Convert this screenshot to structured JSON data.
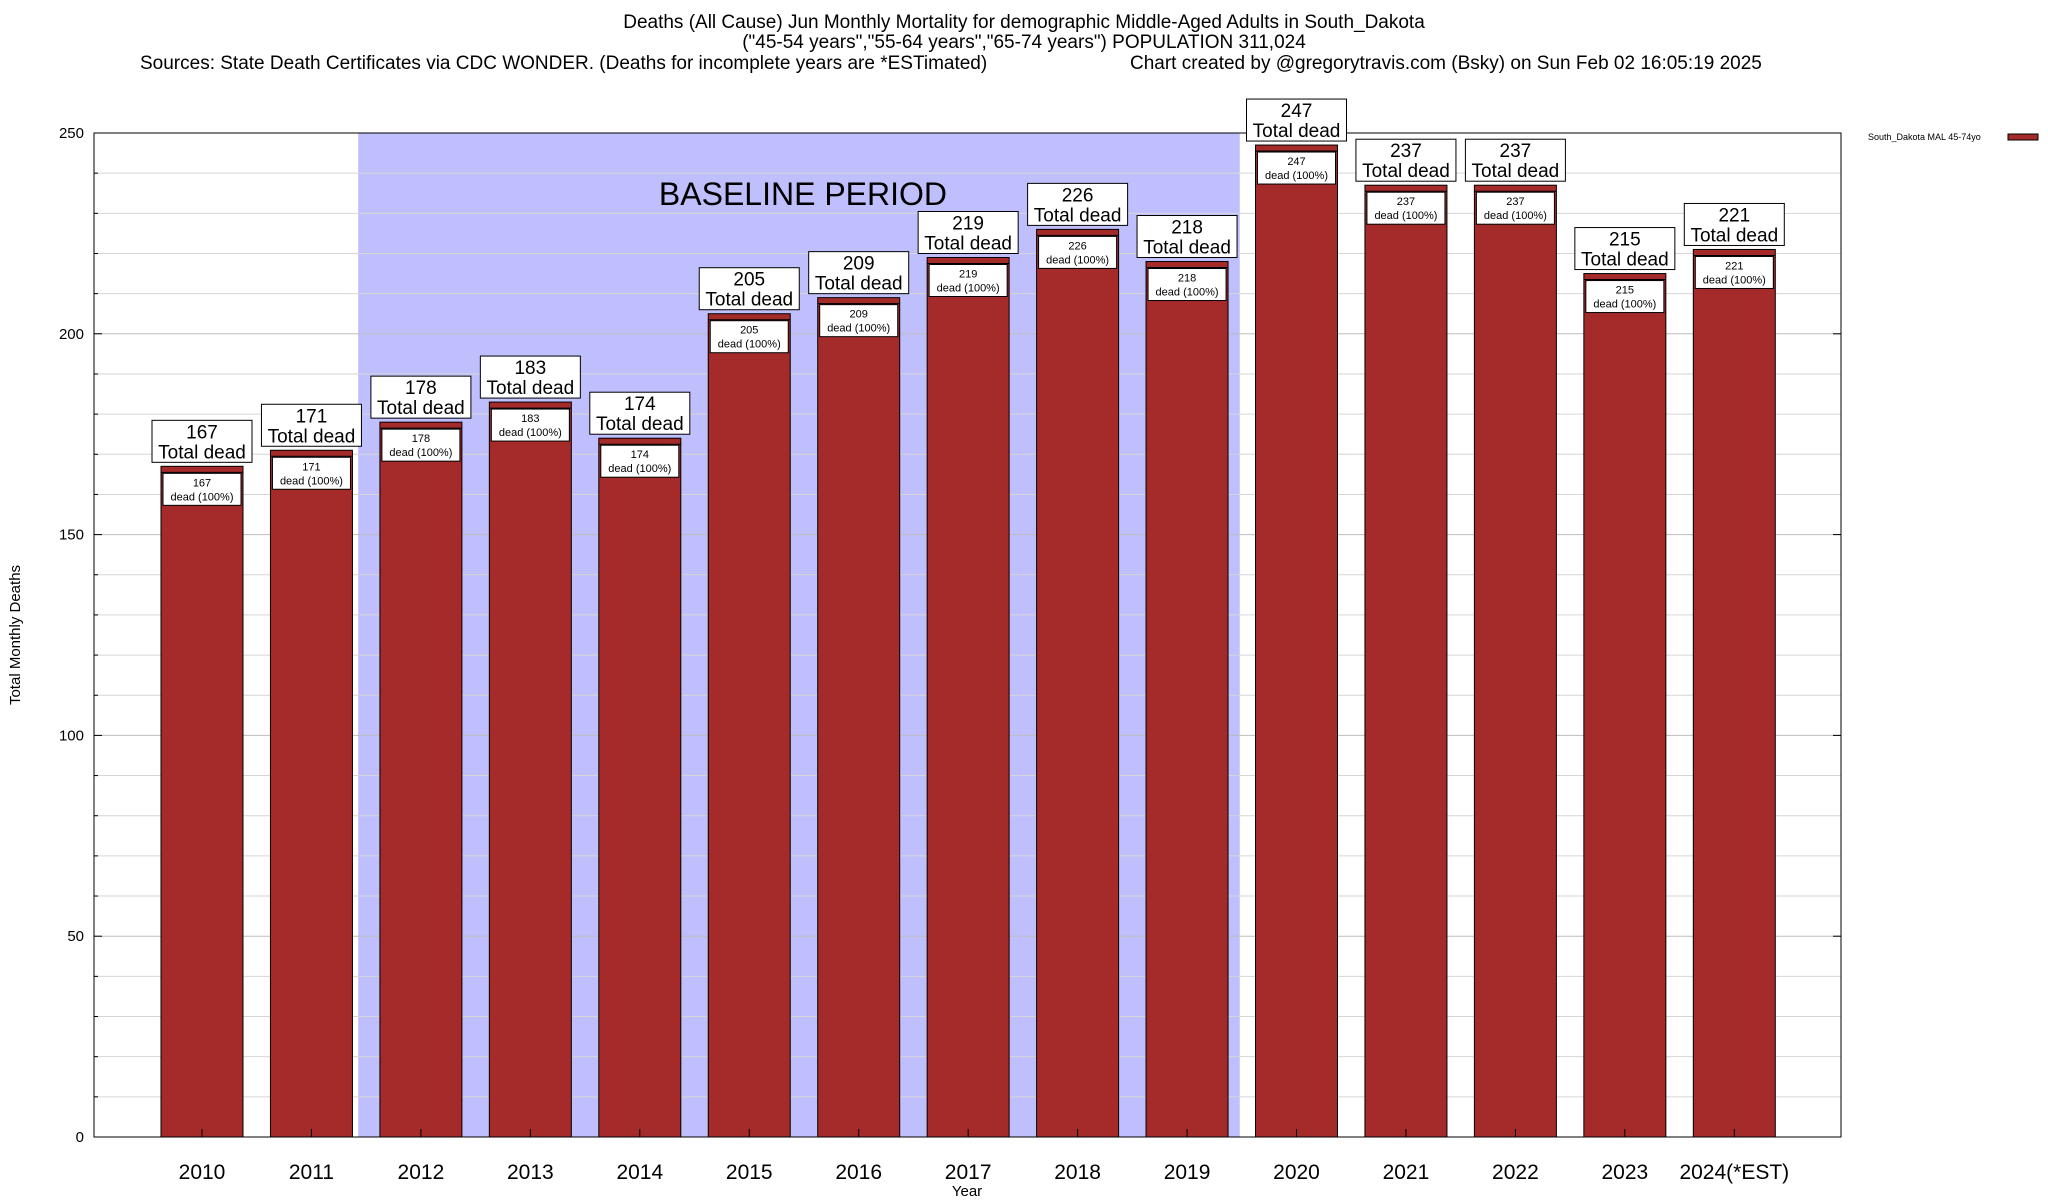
{
  "chart_data": {
    "type": "bar",
    "title_line1": "Deaths (All Cause) Jun Monthly Mortality for demographic Middle-Aged Adults in South_Dakota",
    "title_line2": "(\"45-54 years\",\"55-64 years\",\"65-74 years\") POPULATION 311,024",
    "subtitle_sources": "Sources: State Death Certificates via CDC WONDER. (Deaths for incomplete years are *ESTimated)",
    "subtitle_credit": "Chart created by @gregorytravis.com (Bsky) on Sun Feb 02 16:05:19 2025",
    "xlabel": "Year",
    "ylabel": "Total Monthly Deaths",
    "ylim": [
      0,
      250
    ],
    "yticks": [
      0,
      50,
      100,
      150,
      200,
      250
    ],
    "categories": [
      "2010",
      "2011",
      "2012",
      "2013",
      "2014",
      "2015",
      "2016",
      "2017",
      "2018",
      "2019",
      "2020",
      "2021",
      "2022",
      "2023",
      "2024(*EST)"
    ],
    "series": [
      {
        "name": "South_Dakota MAL 45-74yo",
        "color": "#a52a2a",
        "values": [
          167,
          171,
          178,
          183,
          174,
          205,
          209,
          219,
          226,
          218,
          247,
          237,
          237,
          215,
          221
        ]
      }
    ],
    "top_label_suffix": "Total dead",
    "inner_label_suffix": "dead (100%)",
    "baseline": {
      "label": "BASELINE PERIOD",
      "from": "2012",
      "to": "2019",
      "color": "#bfbffd"
    },
    "legend": {
      "position": "top-right",
      "label": "South_Dakota MAL 45-74yo"
    }
  }
}
